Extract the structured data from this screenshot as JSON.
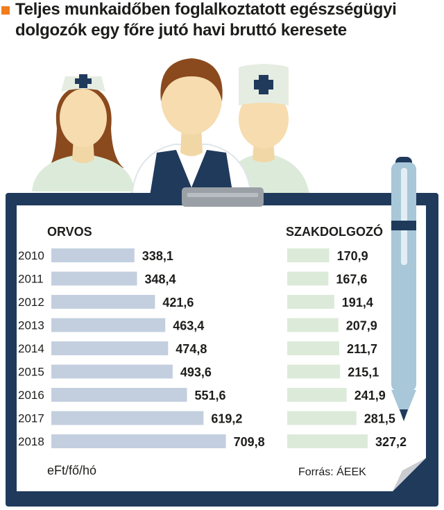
{
  "header": {
    "title_line_1": "Teljes munkaidőben foglalkoztatott egészségügyi",
    "title_line_2": "dolgozók egy főre jutó havi bruttó keresete"
  },
  "colors": {
    "accent": "#f07d1e",
    "board": "#203a5c",
    "orvos_bar": "#c3cfdf",
    "szakdolgozo_bar": "#dcebd9",
    "pen": "#a8c7d8"
  },
  "icons": [
    "nurse-icon",
    "doctor-icon",
    "assistant-icon",
    "pen-icon",
    "clipboard-clip-icon"
  ],
  "chart_data": {
    "type": "bar",
    "orientation": "horizontal",
    "categories": [
      "2010",
      "2011",
      "2012",
      "2013",
      "2014",
      "2015",
      "2016",
      "2017",
      "2018"
    ],
    "series": [
      {
        "name": "ORVOS",
        "values": [
          338.1,
          348.4,
          421.6,
          463.4,
          474.8,
          493.6,
          551.6,
          619.2,
          709.8
        ],
        "labels": [
          "338,1",
          "348,4",
          "421,6",
          "463,4",
          "474,8",
          "493,6",
          "551,6",
          "619,2",
          "709,8"
        ]
      },
      {
        "name": "SZAKDOLGOZÓ",
        "values": [
          170.9,
          167.6,
          191.4,
          207.9,
          211.7,
          215.1,
          241.9,
          281.5,
          327.2
        ],
        "labels": [
          "170,9",
          "167,6",
          "191,4",
          "207,9",
          "211,7",
          "215,1",
          "241,9",
          "281,5",
          "327,2"
        ]
      }
    ],
    "unit_label": "eFt/fő/hó",
    "source_label": "Forrás: ÁEEK",
    "grid": false,
    "legend": "none"
  }
}
